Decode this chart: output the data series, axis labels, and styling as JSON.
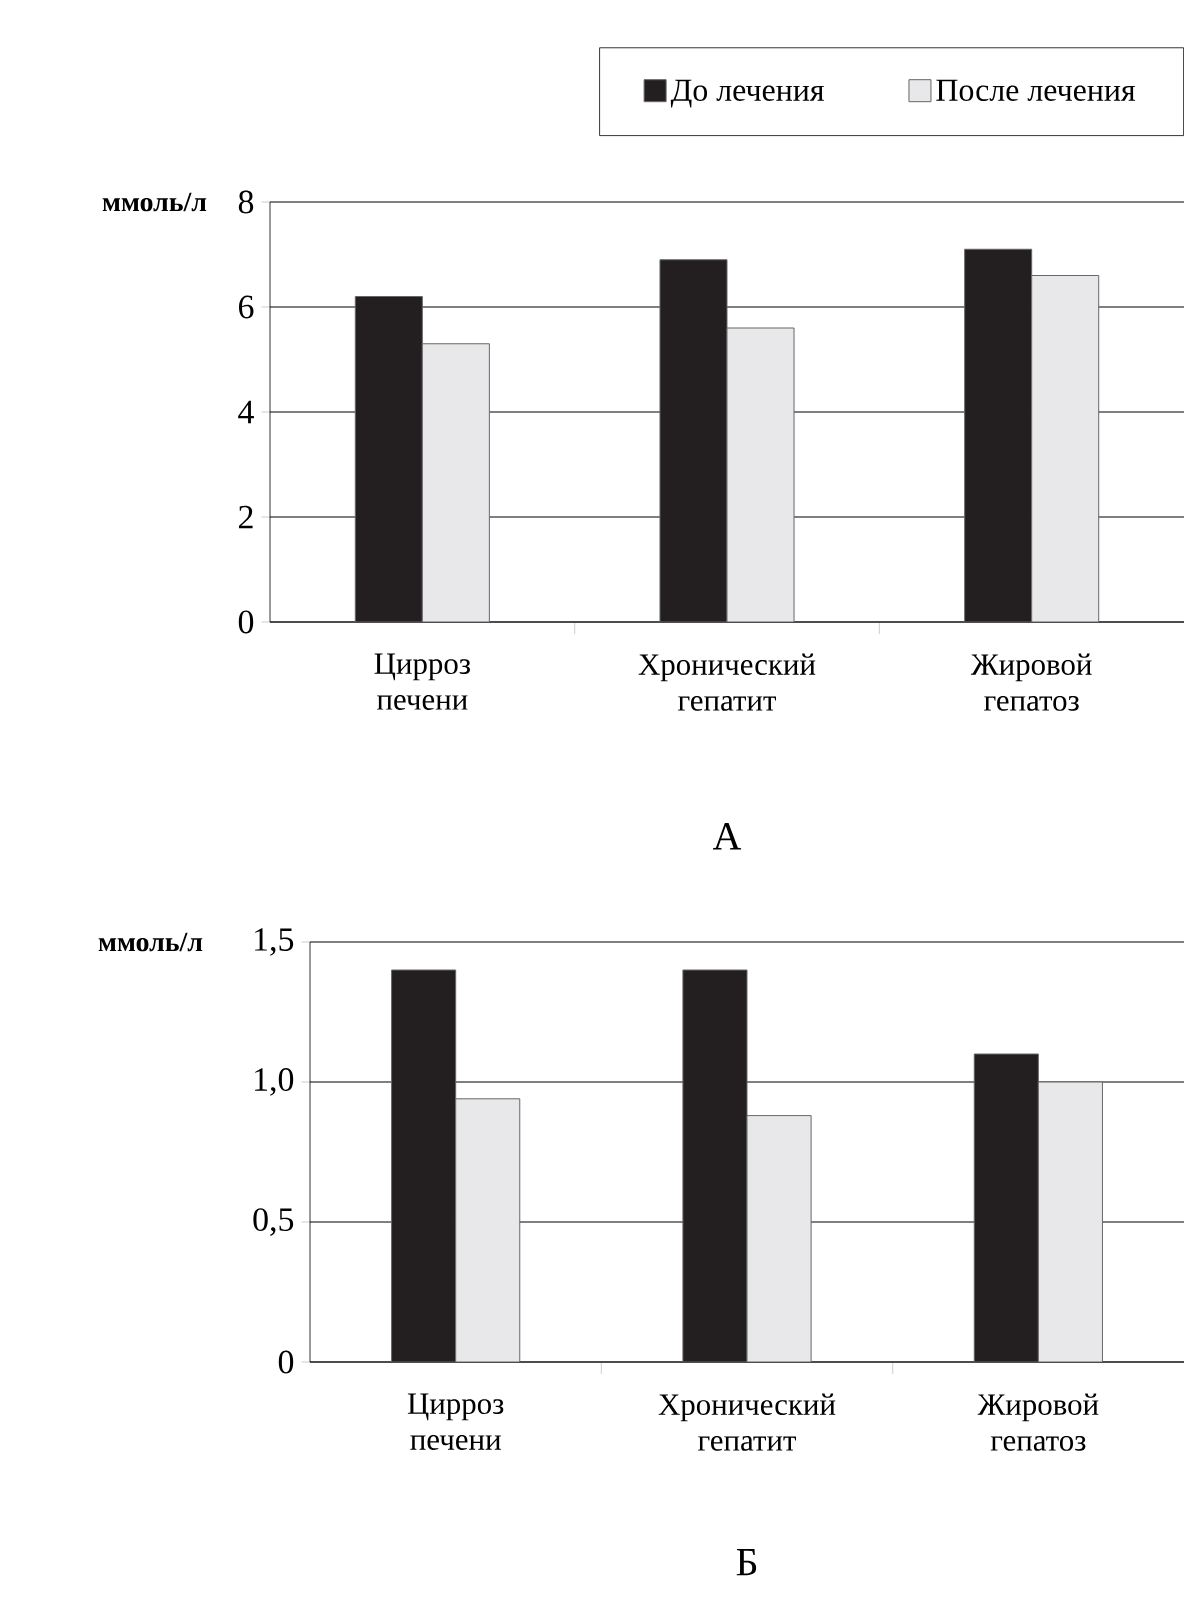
{
  "chart_data": [
    {
      "type": "bar",
      "title": "А",
      "ylabel": "ммоль/л",
      "categories": [
        "Цирроз печени",
        "Хронический гепатит",
        "Жировой гепатоз"
      ],
      "ylim": [
        0,
        8
      ],
      "yticks": [
        0,
        2,
        4,
        6,
        8
      ],
      "grid": "y",
      "legend": "top",
      "series": [
        {
          "name": "До лечения",
          "color": "#231f20",
          "values": [
            6.2,
            6.9,
            7.1
          ]
        },
        {
          "name": "После лечения",
          "color": "#e8e8ea",
          "values": [
            5.3,
            5.6,
            6.6
          ]
        }
      ]
    },
    {
      "type": "bar",
      "title": "Б",
      "ylabel": "ммоль/л",
      "categories": [
        "Цирроз печени",
        "Хронический гепатит",
        "Жировой гепатоз"
      ],
      "ylim": [
        0,
        1.5
      ],
      "yticks": [
        0,
        {
          "value": 0.5,
          "label": "0,5"
        },
        {
          "value": 1.0,
          "label": "1,0"
        },
        {
          "value": 1.5,
          "label": "1,5"
        }
      ],
      "grid": "y",
      "series": [
        {
          "color": "#231f20",
          "values": [
            1.4,
            1.4,
            1.1
          ]
        },
        {
          "color": "#e8e8ea",
          "values": [
            0.94,
            0.88,
            1.0
          ]
        }
      ]
    }
  ]
}
